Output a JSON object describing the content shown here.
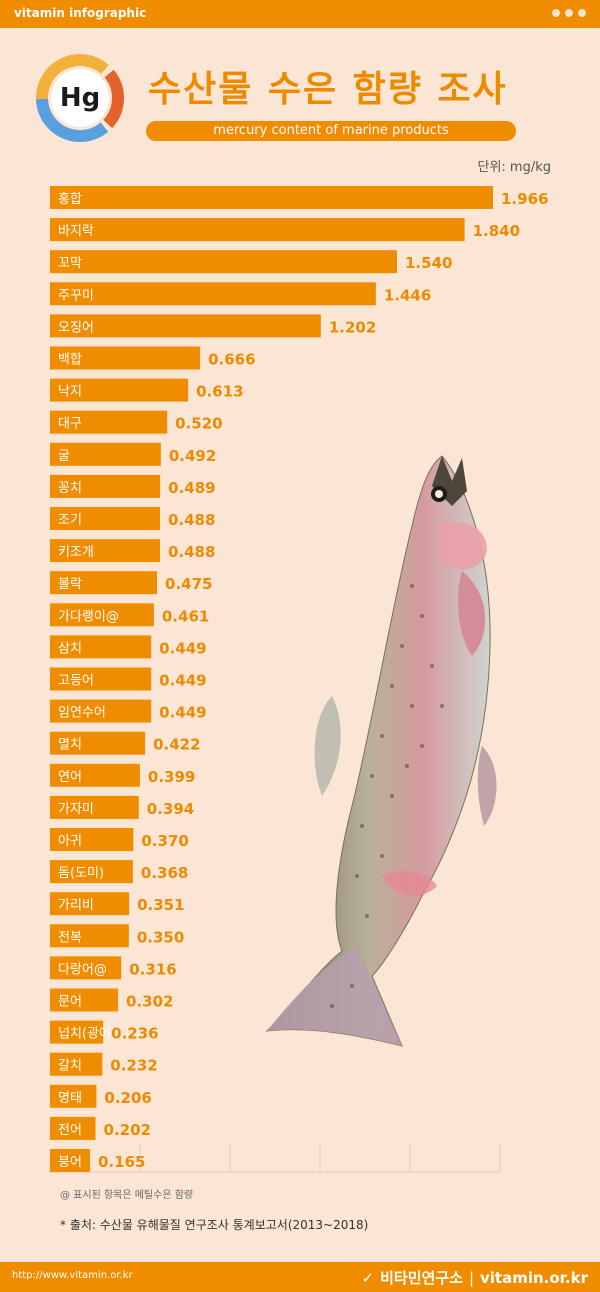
{
  "header": {
    "brand": "vitamin infographic"
  },
  "badge": {
    "symbol": "Hg"
  },
  "title": "수산물 수은 함량 조사",
  "subtitle": "mercury content of marine products",
  "unit": "단위: mg/kg",
  "colors": {
    "accent": "#f08c00",
    "background": "#fbe6d6",
    "value_text": "#ee8a00"
  },
  "chart_data": {
    "type": "bar",
    "orientation": "horizontal",
    "unit": "mg/kg",
    "categories": [
      "홍합",
      "바지락",
      "꼬막",
      "주꾸미",
      "오징어",
      "백합",
      "낙지",
      "대구",
      "굴",
      "꽁치",
      "조기",
      "키조개",
      "볼락",
      "가다랭이@",
      "삼치",
      "고등어",
      "임연수어",
      "멸치",
      "연어",
      "가자미",
      "아귀",
      "돔(도미)",
      "가리비",
      "전복",
      "다랑어@",
      "문어",
      "넙치(광어)",
      "갈치",
      "명태",
      "전어",
      "붕어"
    ],
    "values": [
      1.966,
      1.84,
      1.54,
      1.446,
      1.202,
      0.666,
      0.613,
      0.52,
      0.492,
      0.489,
      0.488,
      0.488,
      0.475,
      0.461,
      0.449,
      0.449,
      0.449,
      0.422,
      0.399,
      0.394,
      0.37,
      0.368,
      0.351,
      0.35,
      0.316,
      0.302,
      0.236,
      0.232,
      0.206,
      0.202,
      0.165
    ],
    "value_labels": [
      "1.966",
      "1.840",
      "1.540",
      "1.446",
      "1.202",
      "0.666",
      "0.613",
      "0.520",
      "0.492",
      "0.489",
      "0.488",
      "0.488",
      "0.475",
      "0.461",
      "0.449",
      "0.449",
      "0.449",
      "0.422",
      "0.399",
      "0.394",
      "0.370",
      "0.368",
      "0.351",
      "0.350",
      "0.316",
      "0.302",
      "0.236",
      "0.232",
      "0.206",
      "0.202",
      "0.165"
    ],
    "xlim": [
      0,
      2.0
    ],
    "grid": true
  },
  "notes": {
    "methyl": "@ 표시된 항목은 메틸수은 함량",
    "source": "* 출처: 수산물 유해물질 연구조사 통계보고서(2013~2018)"
  },
  "footer": {
    "url": "http://www.vitamin.or.kr",
    "org": "비타민연구소",
    "site": "vitamin.or.kr",
    "divider": "|"
  }
}
